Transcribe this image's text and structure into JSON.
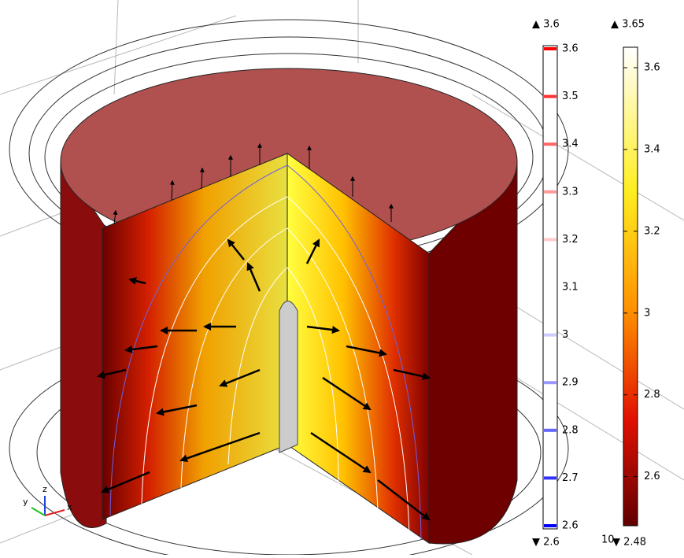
{
  "scene": {
    "axes": {
      "x": "x",
      "y": "y",
      "z": "z"
    },
    "stray_label": "10"
  },
  "contour_legend": {
    "max": {
      "value": 3.6,
      "label": "▲ 3.6"
    },
    "min": {
      "value": 2.6,
      "label": "▼ 2.6"
    },
    "ticks": [
      3.6,
      3.5,
      3.4,
      3.3,
      3.2,
      3.1,
      3,
      2.9,
      2.8,
      2.7,
      2.6
    ]
  },
  "color_legend": {
    "max": {
      "value": 3.65,
      "label": "▲ 3.65"
    },
    "min": {
      "value": 2.48,
      "label": "▼ 2.48"
    },
    "ticks": [
      3.6,
      3.4,
      3.2,
      3,
      2.8,
      2.6
    ]
  }
}
